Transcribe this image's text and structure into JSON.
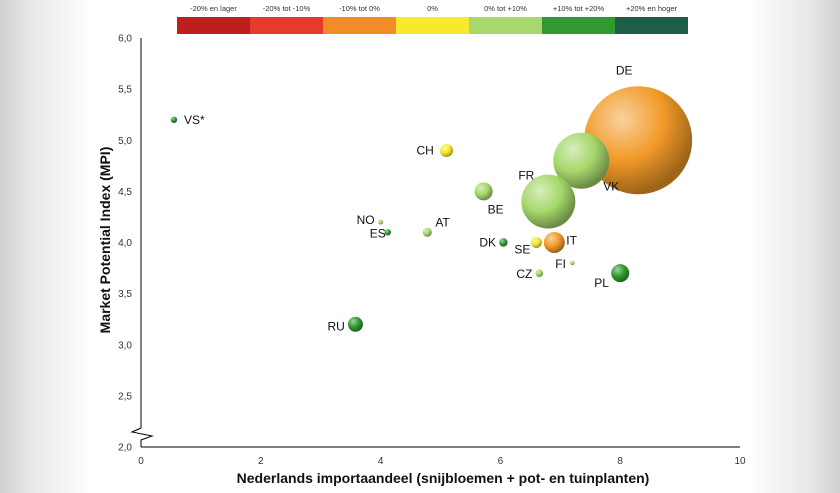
{
  "chart_data": {
    "type": "scatter",
    "xlabel": "Nederlands importaandeel (snijbloemen + pot- en tuinplanten)",
    "ylabel": "Market Potential Index (MPI)",
    "xlim": [
      0,
      10
    ],
    "ylim": [
      2.0,
      6.0
    ],
    "xticks": [
      "0",
      "2",
      "4",
      "6",
      "8",
      "10"
    ],
    "yticks": [
      "2,0",
      "2,5",
      "3,0",
      "3,5",
      "4,0",
      "4,5",
      "5,0",
      "5,5",
      "6,0"
    ],
    "y_axis_break": true,
    "legend": {
      "placement": "top",
      "items": [
        {
          "label": "-20% en lager",
          "color": "#bf1e1e"
        },
        {
          "label": "-20% tot -10%",
          "color": "#e83a2c"
        },
        {
          "label": "-10% tot 0%",
          "color": "#f28c28"
        },
        {
          "label": "0%",
          "color": "#f7ea2a"
        },
        {
          "label": "0% tot +10%",
          "color": "#a6d86b"
        },
        {
          "label": "+10% tot +20%",
          "color": "#2f9a2f"
        },
        {
          "label": "+20% en hoger",
          "color": "#1f5e46"
        }
      ]
    },
    "points": [
      {
        "label": "VS*",
        "x": 0.55,
        "y": 5.2,
        "size": 3.2,
        "color": "#2f9a2f"
      },
      {
        "label": "DE",
        "x": 8.3,
        "y": 5.0,
        "size": 54,
        "color": "#f29a28"
      },
      {
        "label": "VK",
        "x": 7.35,
        "y": 4.8,
        "size": 28,
        "color": "#a6d86b"
      },
      {
        "label": "FR",
        "x": 6.8,
        "y": 4.4,
        "size": 27,
        "color": "#a6d86b"
      },
      {
        "label": "CH",
        "x": 5.1,
        "y": 4.9,
        "size": 6.5,
        "color": "#f7ea2a"
      },
      {
        "label": "BE",
        "x": 5.72,
        "y": 4.5,
        "size": 9,
        "color": "#a6d86b"
      },
      {
        "label": "NO",
        "x": 4.0,
        "y": 4.2,
        "size": 2.5,
        "color": "#a6d86b"
      },
      {
        "label": "ES",
        "x": 4.12,
        "y": 4.1,
        "size": 3.2,
        "color": "#2f9a2f"
      },
      {
        "label": "AT",
        "x": 4.78,
        "y": 4.1,
        "size": 4.5,
        "color": "#a6d86b"
      },
      {
        "label": "DK",
        "x": 6.05,
        "y": 4.0,
        "size": 4.2,
        "color": "#2f9a2f"
      },
      {
        "label": "SE",
        "x": 6.6,
        "y": 4.0,
        "size": 5.5,
        "color": "#f7ea2a"
      },
      {
        "label": "IT",
        "x": 6.9,
        "y": 4.0,
        "size": 10.5,
        "color": "#f29a28"
      },
      {
        "label": "FI",
        "x": 7.2,
        "y": 3.8,
        "size": 2.2,
        "color": "#a6d86b"
      },
      {
        "label": "CZ",
        "x": 6.65,
        "y": 3.7,
        "size": 3.8,
        "color": "#a6d86b"
      },
      {
        "label": "PL",
        "x": 8.0,
        "y": 3.7,
        "size": 9,
        "color": "#2f9a2f"
      },
      {
        "label": "RU",
        "x": 3.58,
        "y": 3.2,
        "size": 7.5,
        "color": "#2f9a2f"
      }
    ]
  }
}
